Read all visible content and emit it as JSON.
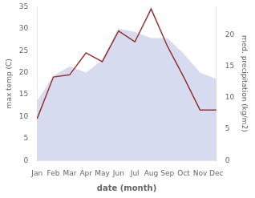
{
  "chart_data": {
    "type": "line",
    "categories": [
      "Jan",
      "Feb",
      "Mar",
      "Apr",
      "May",
      "Jun",
      "Jul",
      "Aug",
      "Sep",
      "Oct",
      "Nov",
      "Dec"
    ],
    "series": [
      {
        "type": "line",
        "color": "#993333",
        "values": [
          9.5,
          19.0,
          19.5,
          24.5,
          22.5,
          29.5,
          27.0,
          34.5,
          26.0,
          19.0,
          11.5,
          11.5
        ]
      },
      {
        "type": "area",
        "color": "#c5cce8",
        "axis": "y2",
        "values": [
          9.5,
          13.5,
          15.0,
          14.0,
          16.0,
          21.0,
          20.5,
          19.5,
          19.5,
          17.0,
          14.0,
          13.0
        ]
      }
    ],
    "xlabel": "date (month)",
    "ylabel": "max temp (C)",
    "y2label": "med. precipitation (kg/m2)",
    "ylim": [
      0,
      35
    ],
    "yticks": [
      0,
      5,
      10,
      15,
      20,
      25,
      30,
      35
    ],
    "y2lim": [
      0,
      24.5
    ],
    "y2ticks": [
      0,
      5,
      10,
      15,
      20
    ],
    "grid": false
  }
}
